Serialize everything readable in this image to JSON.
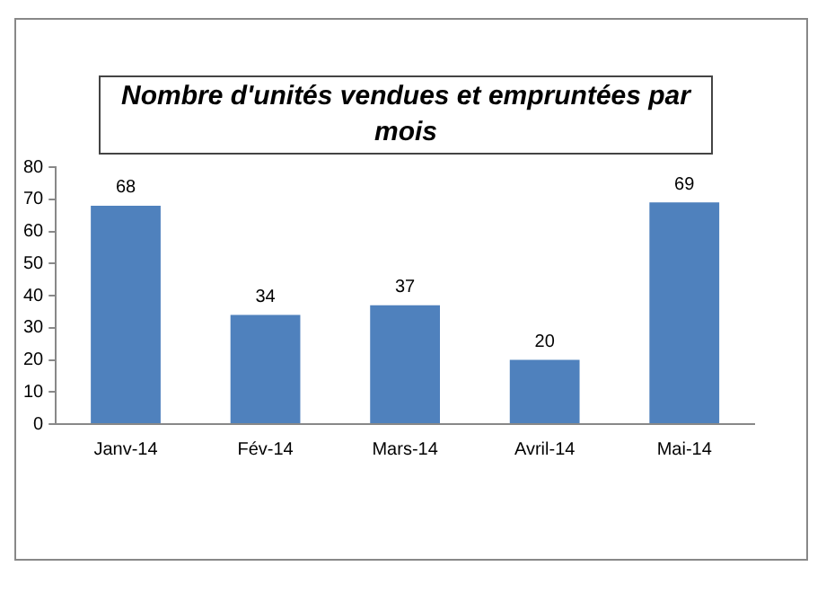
{
  "chart_data": {
    "type": "bar",
    "title": "Nombre d'unités vendues et empruntées par mois",
    "categories": [
      "Janv-14",
      "Fév-14",
      "Mars-14",
      "Avril-14",
      "Mai-14"
    ],
    "values": [
      68,
      34,
      37,
      20,
      69
    ],
    "color": "#4f81bd",
    "ylim": [
      0,
      80
    ],
    "yticks": [
      0,
      10,
      20,
      30,
      40,
      50,
      60,
      70,
      80
    ],
    "grid": false,
    "data_labels": true
  }
}
